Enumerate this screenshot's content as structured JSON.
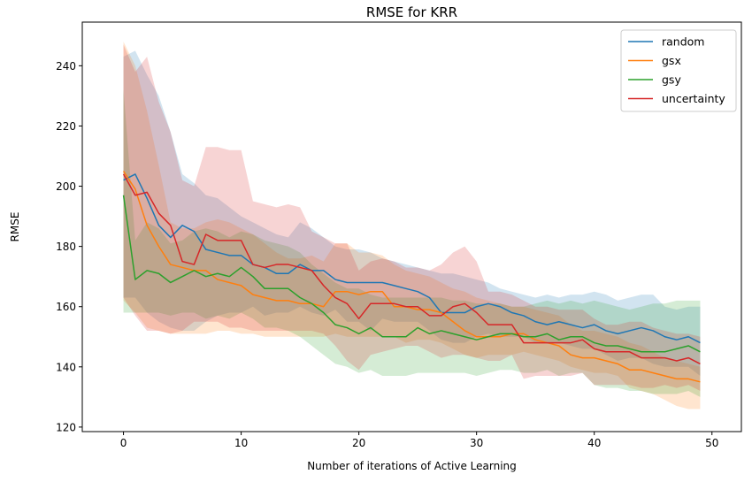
{
  "chart_data": {
    "type": "line",
    "title": "RMSE for KRR",
    "xlabel": "Number of iterations of Active Learning",
    "ylabel": "RMSE",
    "xlim": [
      -3.5,
      52.5
    ],
    "ylim": [
      118.5,
      254.5
    ],
    "xticks": [
      0,
      10,
      20,
      30,
      40,
      50
    ],
    "yticks": [
      120,
      140,
      160,
      180,
      200,
      220,
      240
    ],
    "grid": false,
    "legend": "top-right",
    "band_opacity": 0.2,
    "x": [
      0,
      1,
      2,
      3,
      4,
      5,
      6,
      7,
      8,
      9,
      10,
      11,
      12,
      13,
      14,
      15,
      16,
      17,
      18,
      19,
      20,
      21,
      22,
      23,
      24,
      25,
      26,
      27,
      28,
      29,
      30,
      31,
      32,
      33,
      34,
      35,
      36,
      37,
      38,
      39,
      40,
      41,
      42,
      43,
      44,
      45,
      46,
      47,
      48,
      49
    ],
    "series": [
      {
        "name": "random",
        "color": "#1f77b4",
        "values": [
          202,
          204,
          196,
          187,
          183,
          187,
          185,
          179,
          178,
          177,
          177,
          174,
          173,
          171,
          171,
          174,
          172,
          172,
          169,
          168,
          168,
          168,
          168,
          167,
          166,
          165,
          163,
          158,
          158,
          158,
          160,
          161,
          160,
          158,
          157,
          155,
          154,
          155,
          154,
          153,
          154,
          152,
          151,
          152,
          153,
          152,
          150,
          149,
          150,
          148
        ],
        "upper": [
          243,
          245,
          237,
          230,
          218,
          204,
          201,
          197,
          196,
          193,
          190,
          188,
          186,
          184,
          183,
          188,
          186,
          183,
          180,
          179,
          179,
          178,
          176,
          175,
          174,
          173,
          172,
          171,
          171,
          170,
          169,
          168,
          166,
          165,
          164,
          163,
          164,
          163,
          164,
          164,
          165,
          164,
          162,
          163,
          164,
          164,
          160,
          159,
          160,
          160
        ],
        "lower": [
          163,
          163,
          158,
          155,
          153,
          152,
          152,
          155,
          157,
          158,
          158,
          160,
          157,
          158,
          158,
          160,
          158,
          157,
          159,
          155,
          155,
          152,
          156,
          155,
          155,
          155,
          152,
          149,
          148,
          148,
          150,
          151,
          150,
          150,
          150,
          148,
          148,
          148,
          147,
          146,
          146,
          144,
          142,
          143,
          143,
          141,
          140,
          140,
          140,
          137
        ]
      },
      {
        "name": "gsx",
        "color": "#ff7f0e",
        "values": [
          205,
          199,
          187,
          180,
          174,
          173,
          172,
          172,
          169,
          168,
          167,
          164,
          163,
          162,
          162,
          161,
          161,
          160,
          165,
          165,
          164,
          165,
          165,
          160,
          160,
          159,
          159,
          158,
          155,
          152,
          150,
          150,
          150,
          151,
          151,
          149,
          148,
          147,
          144,
          143,
          143,
          142,
          141,
          139,
          139,
          138,
          137,
          136,
          136,
          135
        ],
        "upper": [
          248,
          240,
          225,
          207,
          188,
          186,
          186,
          188,
          189,
          188,
          186,
          184,
          181,
          178,
          176,
          176,
          177,
          175,
          181,
          181,
          178,
          178,
          177,
          174,
          172,
          171,
          170,
          168,
          166,
          165,
          163,
          162,
          161,
          160,
          160,
          159,
          158,
          157,
          154,
          152,
          152,
          151,
          150,
          148,
          147,
          145,
          143,
          142,
          141,
          140
        ],
        "lower": [
          162,
          158,
          153,
          152,
          151,
          151,
          151,
          151,
          152,
          152,
          151,
          151,
          150,
          150,
          150,
          150,
          150,
          150,
          151,
          150,
          150,
          150,
          150,
          150,
          148,
          149,
          149,
          148,
          146,
          144,
          143,
          144,
          144,
          144,
          145,
          144,
          143,
          142,
          140,
          139,
          138,
          138,
          137,
          133,
          132,
          131,
          129,
          127,
          126,
          126
        ]
      },
      {
        "name": "gsy",
        "color": "#2ca02c",
        "values": [
          197,
          169,
          172,
          171,
          168,
          170,
          172,
          170,
          171,
          170,
          173,
          170,
          166,
          166,
          166,
          163,
          161,
          158,
          154,
          153,
          151,
          153,
          150,
          150,
          150,
          153,
          151,
          152,
          151,
          150,
          149,
          150,
          151,
          151,
          150,
          150,
          151,
          149,
          150,
          150,
          148,
          147,
          147,
          146,
          145,
          145,
          145,
          146,
          147,
          145
        ],
        "upper": [
          232,
          182,
          188,
          186,
          181,
          182,
          185,
          186,
          185,
          183,
          185,
          184,
          182,
          181,
          180,
          178,
          174,
          171,
          168,
          166,
          166,
          164,
          163,
          163,
          163,
          163,
          163,
          163,
          162,
          162,
          161,
          161,
          161,
          160,
          160,
          161,
          162,
          161,
          162,
          161,
          162,
          161,
          160,
          159,
          160,
          161,
          161,
          162,
          162,
          162
        ],
        "lower": [
          158,
          158,
          158,
          158,
          157,
          158,
          158,
          156,
          157,
          156,
          158,
          156,
          153,
          153,
          152,
          150,
          147,
          144,
          141,
          140,
          138,
          139,
          137,
          137,
          137,
          138,
          138,
          138,
          138,
          138,
          137,
          138,
          139,
          139,
          138,
          138,
          139,
          137,
          138,
          138,
          134,
          133,
          133,
          132,
          132,
          131,
          131,
          131,
          132,
          130
        ]
      },
      {
        "name": "uncertainty",
        "color": "#d62728",
        "values": [
          204,
          197,
          198,
          191,
          187,
          175,
          174,
          184,
          182,
          182,
          182,
          174,
          173,
          174,
          174,
          173,
          172,
          167,
          163,
          161,
          156,
          161,
          161,
          161,
          160,
          160,
          157,
          157,
          160,
          161,
          158,
          154,
          154,
          154,
          148,
          148,
          148,
          148,
          148,
          149,
          146,
          145,
          145,
          145,
          143,
          143,
          143,
          142,
          143,
          141
        ],
        "upper": [
          247,
          238,
          243,
          228,
          218,
          202,
          200,
          213,
          213,
          212,
          212,
          195,
          194,
          193,
          194,
          193,
          185,
          183,
          181,
          181,
          172,
          175,
          176,
          175,
          173,
          173,
          172,
          174,
          178,
          180,
          175,
          165,
          165,
          164,
          162,
          160,
          160,
          159,
          159,
          159,
          156,
          154,
          154,
          155,
          155,
          153,
          152,
          151,
          151,
          150
        ],
        "lower": [
          163,
          157,
          152,
          152,
          151,
          152,
          155,
          155,
          155,
          153,
          153,
          152,
          152,
          152,
          152,
          152,
          152,
          151,
          147,
          142,
          139,
          144,
          145,
          146,
          147,
          147,
          145,
          143,
          144,
          144,
          143,
          142,
          142,
          144,
          136,
          137,
          137,
          137,
          137,
          138,
          134,
          134,
          134,
          134,
          133,
          133,
          134,
          133,
          134,
          132
        ]
      }
    ]
  }
}
